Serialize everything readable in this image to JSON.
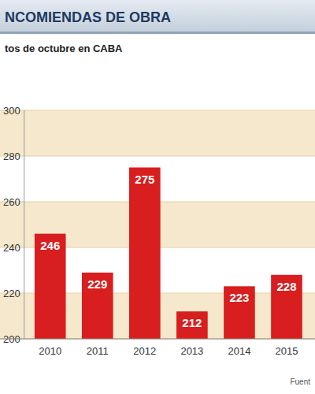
{
  "chart_data": {
    "type": "bar",
    "title": "NCOMIENDAS DE OBRA",
    "subtitle": "tos de octubre en CABA",
    "source": "Fuent",
    "categories": [
      "2010",
      "2011",
      "2012",
      "2013",
      "2014",
      "2015"
    ],
    "values": [
      246,
      229,
      275,
      212,
      223,
      228
    ],
    "color": "#d81e1e",
    "ylim": [
      200,
      300
    ],
    "yticks": [
      200,
      220,
      240,
      260,
      280,
      300
    ],
    "grid": true,
    "data_labels": true
  }
}
